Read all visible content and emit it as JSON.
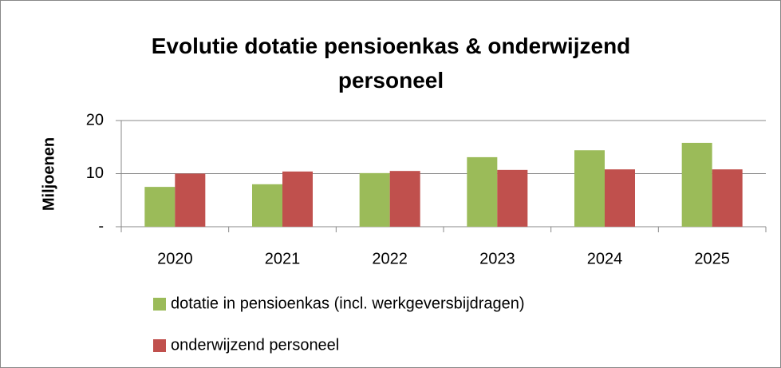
{
  "chart_data": {
    "type": "bar",
    "title": "Evolutie dotatie pensioenkas & onderwijzend personeel",
    "y_label": "Miljoenen",
    "categories": [
      "2020",
      "2021",
      "2022",
      "2023",
      "2024",
      "2025"
    ],
    "series": [
      {
        "name": "dotatie in pensioenkas (incl. werkgeversbijdragen)",
        "color": "#9bbb59",
        "values": [
          7.5,
          8.0,
          10.1,
          13.1,
          14.4,
          15.8
        ]
      },
      {
        "name": "onderwijzend personeel",
        "color": "#c0504d",
        "values": [
          10.0,
          10.4,
          10.5,
          10.7,
          10.8,
          10.8
        ]
      }
    ],
    "ylim": [
      0,
      20
    ],
    "yticks": [
      {
        "value": 0,
        "label": "-"
      },
      10,
      20
    ],
    "grid": true,
    "legend": "bottom"
  }
}
